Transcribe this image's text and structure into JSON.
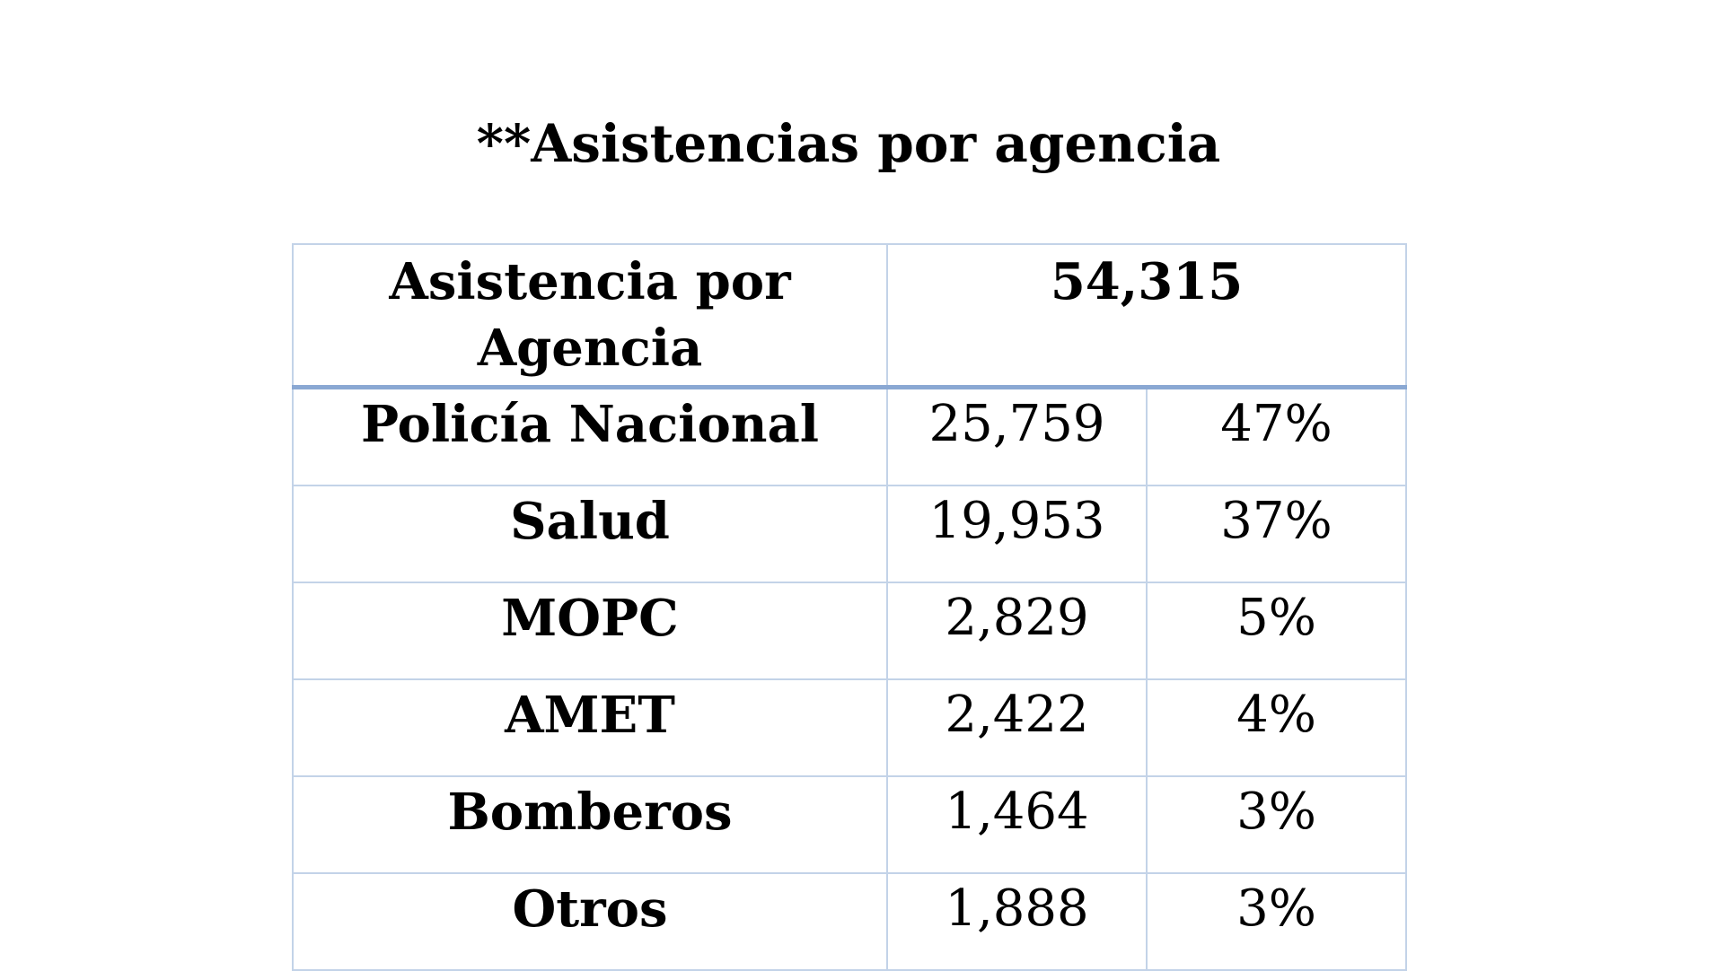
{
  "title": "**Asistencias por agencia",
  "table": {
    "header": {
      "label_line1": "Asistencia por",
      "label_line2": "Agencia",
      "total": "54,315"
    },
    "rows": [
      {
        "agency": "Policía Nacional",
        "count": "25,759",
        "percent": "47%"
      },
      {
        "agency": "Salud",
        "count": "19,953",
        "percent": "37%"
      },
      {
        "agency": "MOPC",
        "count": "2,829",
        "percent": "5%"
      },
      {
        "agency": "AMET",
        "count": "2,422",
        "percent": "4%"
      },
      {
        "agency": "Bomberos",
        "count": "1,464",
        "percent": "3%"
      },
      {
        "agency": "Otros",
        "count": "1,888",
        "percent": "3%"
      }
    ]
  },
  "colors": {
    "cell_border": "#c3d3e8",
    "header_divider": "#8aa8d3",
    "text": "#000000",
    "background": "#ffffff"
  }
}
